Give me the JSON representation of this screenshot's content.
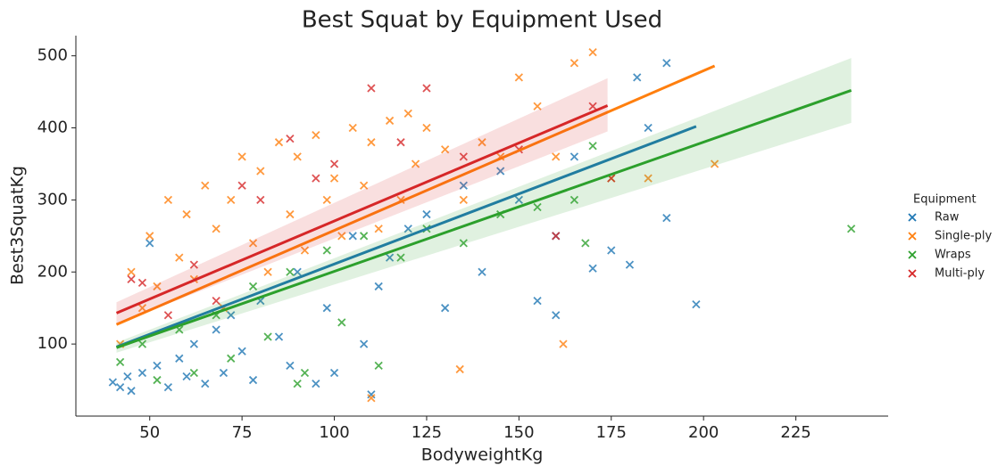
{
  "chart_data": {
    "type": "scatter",
    "title": "Best Squat by Equipment Used",
    "x_label": "BodyweightKg",
    "y_label": "Best3SquatKg",
    "legend_title": "Equipment",
    "legend_position": "right",
    "xlim": [
      30,
      250
    ],
    "ylim": [
      0,
      528
    ],
    "xticks": [
      50,
      75,
      100,
      125,
      150,
      175,
      200,
      225
    ],
    "yticks": [
      100,
      200,
      300,
      400,
      500
    ],
    "grid": false,
    "series": [
      {
        "name": "Raw",
        "color": "#1f77b4",
        "x": [
          40,
          42,
          44,
          45,
          48,
          50,
          52,
          55,
          58,
          60,
          62,
          65,
          68,
          70,
          72,
          75,
          78,
          80,
          85,
          88,
          90,
          95,
          98,
          100,
          105,
          108,
          110,
          112,
          115,
          120,
          125,
          130,
          135,
          140,
          145,
          150,
          155,
          160,
          165,
          170,
          175,
          180,
          182,
          185,
          190,
          198,
          160,
          190
        ],
        "values": [
          47,
          40,
          55,
          35,
          60,
          240,
          70,
          40,
          80,
          55,
          100,
          45,
          120,
          60,
          140,
          90,
          50,
          160,
          110,
          70,
          200,
          45,
          150,
          60,
          250,
          100,
          30,
          180,
          220,
          260,
          280,
          150,
          320,
          200,
          340,
          300,
          160,
          250,
          360,
          205,
          230,
          210,
          470,
          400,
          490,
          155,
          140,
          275
        ],
        "trend": {
          "x": [
            41,
            198
          ],
          "y": [
            96,
            402
          ]
        }
      },
      {
        "name": "Single-ply",
        "color": "#ff7f0e",
        "x": [
          42,
          45,
          48,
          50,
          52,
          55,
          58,
          60,
          62,
          65,
          68,
          70,
          72,
          75,
          78,
          80,
          82,
          85,
          88,
          90,
          92,
          95,
          98,
          100,
          102,
          105,
          108,
          110,
          112,
          115,
          118,
          120,
          122,
          125,
          130,
          135,
          140,
          145,
          150,
          155,
          160,
          162,
          165,
          170,
          175,
          185,
          203,
          110,
          134
        ],
        "values": [
          100,
          200,
          150,
          250,
          180,
          300,
          220,
          280,
          190,
          320,
          260,
          150,
          300,
          360,
          240,
          340,
          200,
          380,
          280,
          360,
          230,
          390,
          300,
          330,
          250,
          400,
          320,
          380,
          260,
          410,
          300,
          420,
          350,
          400,
          370,
          300,
          380,
          360,
          470,
          430,
          360,
          100,
          490,
          505,
          330,
          330,
          350,
          25,
          65
        ],
        "trend": {
          "x": [
            41,
            203
          ],
          "y": [
            127,
            486
          ]
        }
      },
      {
        "name": "Wraps",
        "color": "#2ca02c",
        "x": [
          42,
          48,
          52,
          58,
          62,
          68,
          72,
          78,
          82,
          88,
          92,
          98,
          102,
          108,
          112,
          118,
          125,
          135,
          145,
          155,
          165,
          168,
          170,
          240,
          90
        ],
        "values": [
          75,
          100,
          50,
          120,
          60,
          140,
          80,
          180,
          110,
          200,
          60,
          230,
          130,
          250,
          70,
          220,
          260,
          240,
          280,
          290,
          300,
          240,
          375,
          260,
          45
        ],
        "trend": {
          "x": [
            41,
            240
          ],
          "y": [
            95,
            452
          ],
          "lower": [
            88,
            407
          ],
          "upper": [
            102,
            497
          ]
        }
      },
      {
        "name": "Multi-ply",
        "color": "#d62728",
        "x": [
          45,
          48,
          55,
          62,
          68,
          75,
          80,
          88,
          95,
          100,
          110,
          118,
          125,
          135,
          150,
          160,
          170,
          175
        ],
        "values": [
          190,
          185,
          140,
          210,
          160,
          320,
          300,
          385,
          330,
          350,
          455,
          380,
          455,
          360,
          370,
          250,
          430,
          330
        ],
        "trend": {
          "x": [
            41,
            174
          ],
          "y": [
            143,
            431
          ],
          "lower": [
            128,
            395
          ],
          "upper": [
            158,
            469
          ]
        }
      }
    ]
  }
}
